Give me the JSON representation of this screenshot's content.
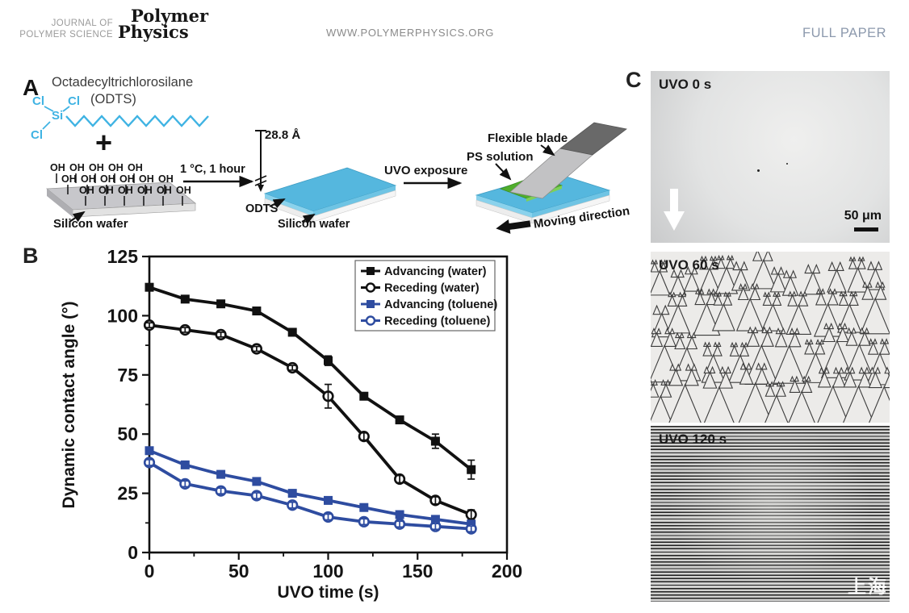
{
  "header": {
    "journal_line1": "JOURNAL OF",
    "journal_line2": "POLYMER SCIENCE",
    "logo_line1": "Polymer",
    "logo_line2": "Physics",
    "website": "WWW.POLYMERPHYSICS.ORG",
    "article_type": "FULL PAPER",
    "article_type_color": "#8C99AD"
  },
  "panel_a": {
    "label": "A",
    "molecule_name": "Octadecyltrichlorosilane",
    "molecule_abbr": "(ODTS)",
    "atom_cl": "Cl",
    "atom_si": "Si",
    "plus_sign": "+",
    "oh_group": "OH",
    "wafer_label": "Silicon wafer",
    "reaction_conditions": "1 °C, 1 hour",
    "film_thickness": "28.8 Å",
    "odts_layer_label": "ODTS",
    "wafer_label_2": "Silicon wafer",
    "uvo_arrow_label": "UVO exposure",
    "blade_label": "Flexible blade",
    "ps_label": "PS solution",
    "moving_label": "Moving direction",
    "chem_blue": "#3FB3E3",
    "odts_fill": "#55B7DE",
    "ps_green": "#4FAE2C"
  },
  "panel_b": {
    "label": "B"
  },
  "chart_data": {
    "type": "line",
    "title": "",
    "xlabel": "UVO time (s)",
    "ylabel": "Dynamic contact angle (°)",
    "xlim": [
      0,
      200
    ],
    "ylim": [
      0,
      125
    ],
    "x_ticks": [
      0,
      50,
      100,
      150,
      200
    ],
    "y_ticks": [
      0,
      25,
      50,
      75,
      100,
      125
    ],
    "grid": false,
    "legend_position": "top-right",
    "x": [
      0,
      20,
      40,
      60,
      80,
      100,
      120,
      140,
      160,
      180
    ],
    "series": [
      {
        "name": "Advancing (water)",
        "marker": "filled-square",
        "color": "#111111",
        "values": [
          112,
          107,
          105,
          102,
          93,
          81,
          66,
          56,
          47,
          35
        ],
        "errors": [
          1,
          1,
          1,
          1,
          1.5,
          2,
          1.5,
          1.5,
          3,
          4
        ]
      },
      {
        "name": "Receding (water)",
        "marker": "open-circle",
        "color": "#111111",
        "values": [
          96,
          94,
          92,
          86,
          78,
          66,
          49,
          31,
          22,
          16
        ],
        "errors": [
          1,
          1,
          1,
          1,
          1,
          5,
          1.5,
          1.5,
          1.5,
          2
        ]
      },
      {
        "name": "Advancing (toluene)",
        "marker": "filled-square",
        "color": "#2E4CA0",
        "values": [
          43,
          37,
          33,
          30,
          25,
          22,
          19,
          16,
          14,
          12
        ],
        "errors": [
          1.2,
          1.2,
          1.2,
          1.2,
          1.2,
          1.2,
          1.2,
          1.2,
          1.2,
          1.2
        ]
      },
      {
        "name": "Receding (toluene)",
        "marker": "open-circle",
        "color": "#2E4CA0",
        "values": [
          38,
          29,
          26,
          24,
          20,
          15,
          13,
          12,
          11,
          10
        ],
        "errors": [
          1.2,
          1.2,
          1.2,
          1.2,
          1.2,
          1.2,
          1.2,
          1.2,
          1.2,
          1.2
        ]
      }
    ]
  },
  "panel_c": {
    "label": "C",
    "images": [
      {
        "label": "UVO 0 s",
        "scale_bar_label": "50 μm"
      },
      {
        "label": "UVO 60 s"
      },
      {
        "label": "UVO 120 s"
      }
    ],
    "watermark": "上海"
  }
}
